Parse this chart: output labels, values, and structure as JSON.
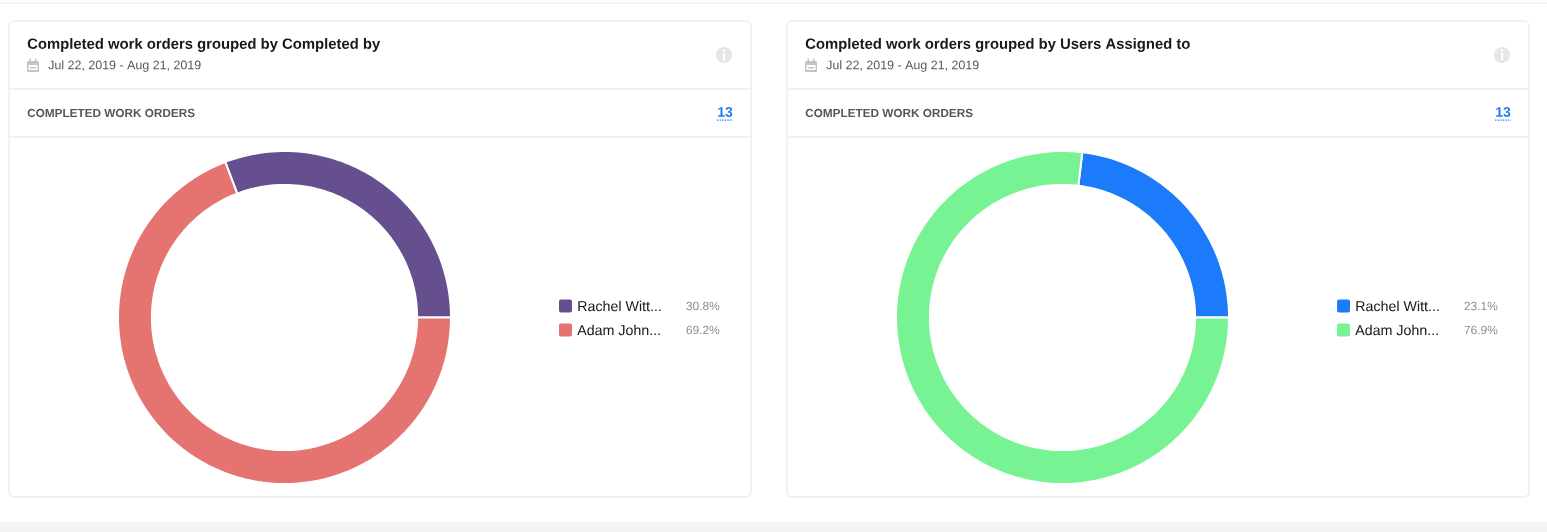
{
  "chart_data": [
    {
      "type": "donut",
      "title": "Completed work orders grouped by Completed by",
      "subtitle": "Jul 22, 2019 - Aug 21, 2019",
      "annotations": [
        "COMPLETED WORK ORDERS",
        "13"
      ],
      "categories": [
        "Rachel Witt...",
        "Adam John..."
      ],
      "values": [
        30.8,
        69.2
      ],
      "colors": [
        "#654f8f",
        "#e57370"
      ],
      "value_labels": [
        "30.8%",
        "69.2%"
      ],
      "legend": "right"
    },
    {
      "type": "donut",
      "title": "Completed work orders grouped by Users Assigned to",
      "subtitle": "Jul 22, 2019 - Aug 21, 2019",
      "annotations": [
        "COMPLETED WORK ORDERS",
        "13"
      ],
      "categories": [
        "Rachel Witt...",
        "Adam John..."
      ],
      "values": [
        23.1,
        76.9
      ],
      "colors": [
        "#1b7bfa",
        "#77f393"
      ],
      "value_labels": [
        "23.1%",
        "76.9%"
      ],
      "legend": "right"
    }
  ]
}
